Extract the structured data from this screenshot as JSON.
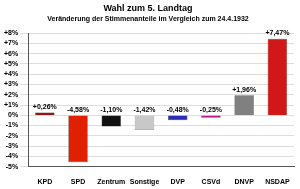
{
  "chart_data": {
    "type": "bar",
    "title": "Wahl zum 5. Landtag",
    "subtitle": "Veränderung der Stimmenanteile im Vergleich zum 24.4.1932",
    "categories": [
      "KPD",
      "SPD",
      "Zentrum",
      "Sonstige",
      "DVP",
      "CSVd",
      "DNVP",
      "NSDAP"
    ],
    "values": [
      0.26,
      -4.58,
      -1.1,
      -1.42,
      -0.48,
      -0.25,
      1.96,
      7.47
    ],
    "value_labels": [
      "+0,26%",
      "-4,58%",
      "-1,10%",
      "-1,42%",
      "-0,48%",
      "-0,25%",
      "+1,96%",
      "+7,47%"
    ],
    "colors": [
      "#a01010",
      "#e02000",
      "#111111",
      "#c8c8c8",
      "#2a2ab8",
      "#b81890",
      "#808080",
      "#d01818"
    ],
    "ylim": [
      -5,
      8
    ],
    "yticks": [
      {
        "value": -5,
        "label": "-5%"
      },
      {
        "value": -4,
        "label": "-4%"
      },
      {
        "value": -3,
        "label": "-3%"
      },
      {
        "value": -2,
        "label": "-2%"
      },
      {
        "value": -1,
        "label": "-1%"
      },
      {
        "value": 0,
        "label": "0%"
      },
      {
        "value": 1,
        "label": "+1%"
      },
      {
        "value": 2,
        "label": "+2%"
      },
      {
        "value": 3,
        "label": "+3%"
      },
      {
        "value": 4,
        "label": "+4%"
      },
      {
        "value": 5,
        "label": "+5%"
      },
      {
        "value": 6,
        "label": "+6%"
      },
      {
        "value": 7,
        "label": "+7%"
      },
      {
        "value": 8,
        "label": "+8%"
      }
    ],
    "grid": true,
    "data_labels": true
  }
}
